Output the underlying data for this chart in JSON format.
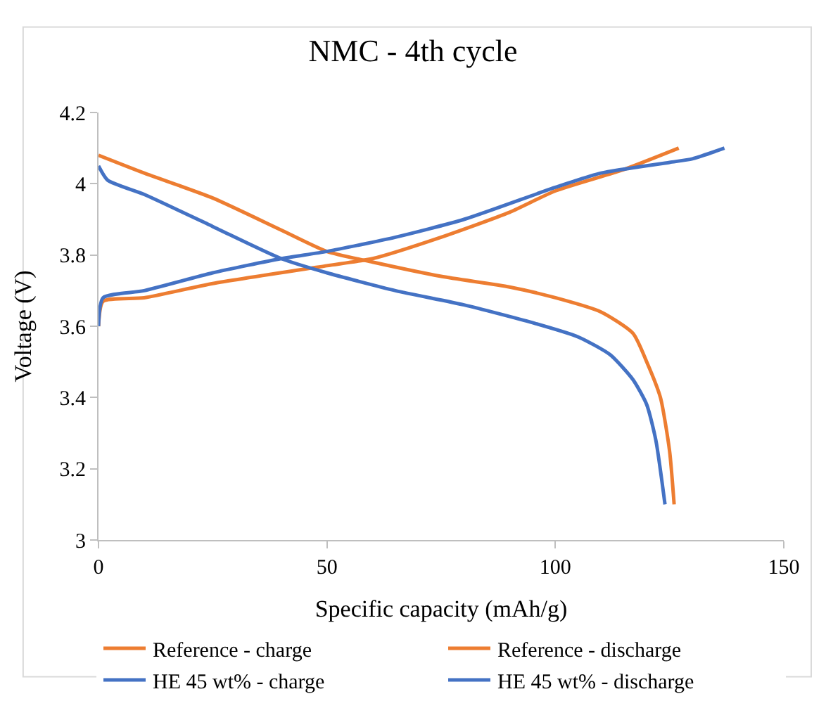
{
  "chart_data": {
    "type": "line",
    "title": "NMC - 4th cycle",
    "xlabel": "Specific capacity (mAh/g)",
    "ylabel": "Voltage (V)",
    "xlim": [
      0,
      150
    ],
    "xticks": [
      0,
      50,
      100,
      150
    ],
    "ylim": [
      3,
      4.2
    ],
    "yticks": [
      3,
      {
        "value": 3.2,
        "label": "3.2"
      },
      {
        "value": 3.4,
        "label": "3.4"
      },
      {
        "value": 3.6,
        "label": "3.6"
      },
      {
        "value": 3.8,
        "label": "3.8"
      },
      {
        "value": 4,
        "label": "4"
      },
      {
        "value": 4.2,
        "label": "4.2"
      }
    ],
    "grid": false,
    "legend": "bottom",
    "marker": "none",
    "line_style": "solid",
    "series": [
      {
        "name": "Reference - charge",
        "color": "#ed7d31",
        "x": [
          0,
          1,
          10,
          25,
          50,
          60,
          75,
          90,
          100,
          115,
          127
        ],
        "values": [
          3.6,
          3.67,
          3.68,
          3.72,
          3.77,
          3.79,
          3.85,
          3.92,
          3.98,
          4.04,
          4.1
        ]
      },
      {
        "name": "Reference - discharge",
        "color": "#ed7d31",
        "x": [
          0,
          10,
          25,
          40,
          50,
          60,
          75,
          90,
          100,
          110,
          117,
          120,
          123,
          125,
          126
        ],
        "values": [
          4.08,
          4.03,
          3.96,
          3.87,
          3.81,
          3.78,
          3.74,
          3.71,
          3.68,
          3.64,
          3.58,
          3.5,
          3.4,
          3.25,
          3.1
        ]
      },
      {
        "name": "HE 45 wt% - charge",
        "color": "#4472c4",
        "x": [
          0,
          1,
          10,
          25,
          40,
          50,
          65,
          80,
          100,
          110,
          125,
          130,
          137
        ],
        "values": [
          3.6,
          3.68,
          3.7,
          3.75,
          3.79,
          3.81,
          3.85,
          3.9,
          3.99,
          4.03,
          4.06,
          4.07,
          4.1
        ]
      },
      {
        "name": "HE 45 wt% - discharge",
        "color": "#4472c4",
        "x": [
          0,
          2,
          10,
          25,
          40,
          50,
          65,
          80,
          95,
          105,
          112,
          117,
          120,
          122,
          124
        ],
        "values": [
          4.05,
          4.01,
          3.97,
          3.88,
          3.79,
          3.75,
          3.7,
          3.66,
          3.61,
          3.57,
          3.52,
          3.45,
          3.38,
          3.28,
          3.1
        ]
      }
    ]
  }
}
